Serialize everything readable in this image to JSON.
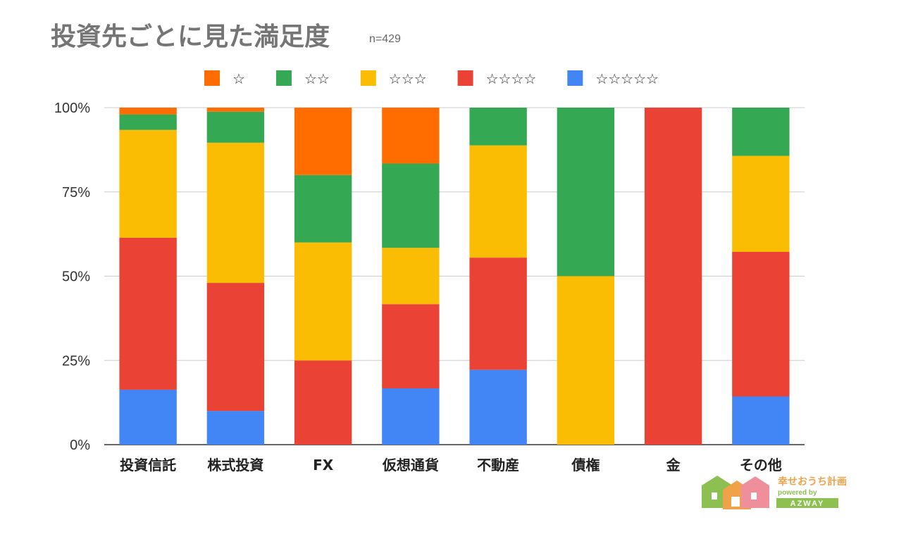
{
  "chart_data": {
    "type": "bar",
    "stacked": true,
    "percent_stacked": true,
    "title": "投資先ごとに見た満足度",
    "subtitle": "n=429",
    "categories": [
      "投資信託",
      "株式投資",
      "FX",
      "仮想通貨",
      "不動産",
      "債権",
      "金",
      "その他"
    ],
    "y_tick_labels": [
      "0%",
      "25%",
      "50%",
      "75%",
      "100%"
    ],
    "ylim": [
      0,
      100
    ],
    "grid": true,
    "legend_position": "top",
    "series": [
      {
        "name": "☆☆☆☆☆",
        "color": "#4285f4",
        "values": [
          16.3,
          10.0,
          0.0,
          16.7,
          22.2,
          0.0,
          0.0,
          14.3
        ]
      },
      {
        "name": "☆☆☆☆",
        "color": "#ea4335",
        "values": [
          45.1,
          38.0,
          25.0,
          25.0,
          33.3,
          0.0,
          100.0,
          42.9
        ]
      },
      {
        "name": "☆☆☆",
        "color": "#fbbc04",
        "values": [
          32.0,
          41.6,
          35.0,
          16.7,
          33.3,
          50.0,
          0.0,
          28.5
        ]
      },
      {
        "name": "☆☆",
        "color": "#34a853",
        "values": [
          4.6,
          9.2,
          20.0,
          25.0,
          11.2,
          50.0,
          0.0,
          14.3
        ]
      },
      {
        "name": "☆",
        "color": "#ff6d01",
        "values": [
          2.0,
          1.2,
          20.0,
          16.6,
          0.0,
          0.0,
          0.0,
          0.0
        ]
      }
    ],
    "legend_order": [
      "☆",
      "☆☆",
      "☆☆☆",
      "☆☆☆☆",
      "☆☆☆☆☆"
    ]
  },
  "logo": {
    "main": "幸せおうち計画",
    "sub": "powered by",
    "brand": "AZWAY"
  },
  "colors": {
    "grid": "#cccccc",
    "axis": "#333333",
    "logo_green": "#8cc152",
    "logo_orange": "#f0a24a",
    "logo_pink": "#ef8f9c"
  }
}
